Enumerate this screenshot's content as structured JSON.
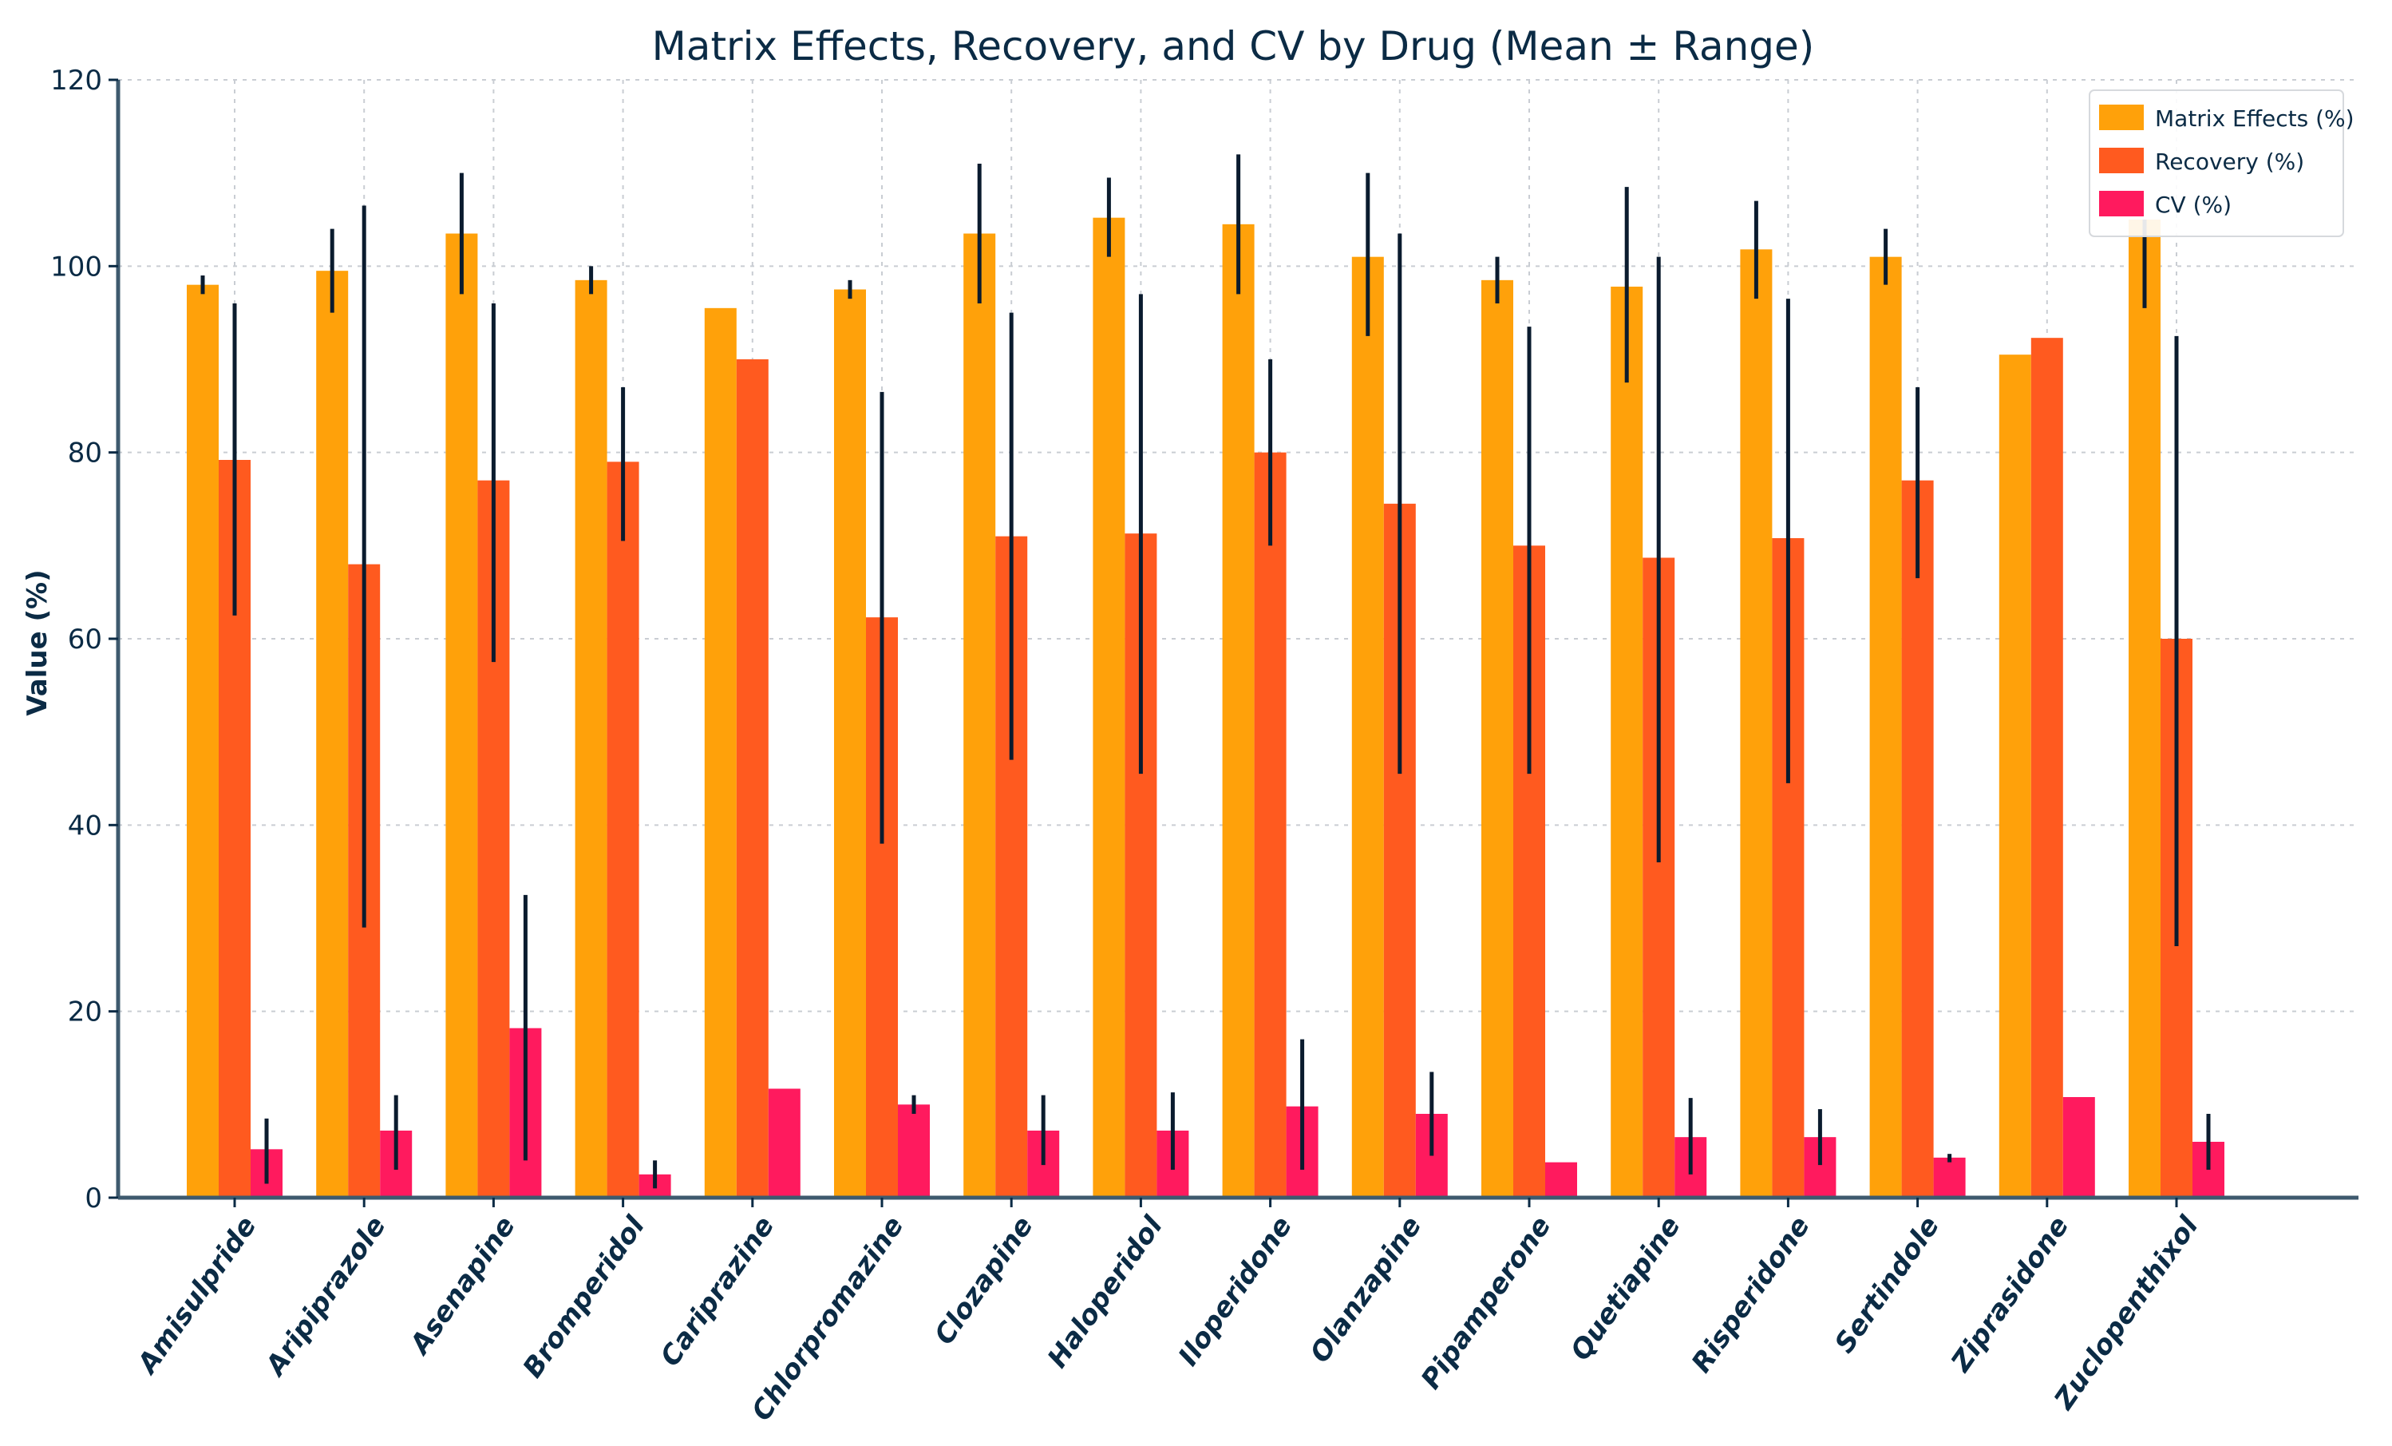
{
  "chart_data": {
    "type": "bar",
    "title": "Matrix Effects, Recovery, and CV by Drug (Mean ± Range)",
    "xlabel": "",
    "ylabel": "Value (%)",
    "ylim": [
      0,
      120
    ],
    "yticks": [
      0,
      20,
      40,
      60,
      80,
      100,
      120
    ],
    "grid": true,
    "legend_position": "top-right",
    "categories": [
      "Amisulpride",
      "Aripiprazole",
      "Asenapine",
      "Bromperidol",
      "Cariprazine",
      "Chlorpromazine",
      "Clozapine",
      "Haloperidol",
      "Iloperidone",
      "Olanzapine",
      "Pipamperone",
      "Quetiapine",
      "Risperidone",
      "Sertindole",
      "Ziprasidone",
      "Zuclopenthixol"
    ],
    "series": [
      {
        "name": "Matrix Effects (%)",
        "color": "#ffa10a",
        "values": [
          98,
          99.5,
          103.5,
          98.5,
          95.5,
          97.5,
          103.5,
          105.2,
          104.5,
          101,
          98.5,
          97.8,
          101.8,
          101,
          90.5,
          105
        ],
        "err_low": [
          97,
          95,
          97,
          97,
          95.5,
          96.5,
          96,
          101,
          97,
          92.5,
          96,
          87.5,
          96.5,
          98,
          90.5,
          95.5
        ],
        "err_high": [
          99,
          104,
          110,
          100,
          95.5,
          98.5,
          111,
          109.5,
          112,
          110,
          101,
          108.5,
          107,
          104,
          90.5,
          105
        ]
      },
      {
        "name": "Recovery (%)",
        "color": "#ff5a1f",
        "values": [
          79.2,
          68,
          77,
          79,
          90,
          62.3,
          71,
          71.3,
          80,
          74.5,
          70,
          68.7,
          70.8,
          77,
          92.3,
          60
        ],
        "err_low": [
          62.5,
          29,
          57.5,
          70.5,
          90,
          38,
          47,
          45.5,
          70,
          45.5,
          45.5,
          36,
          44.5,
          66.5,
          92.3,
          27
        ],
        "err_high": [
          96,
          106.5,
          96,
          87,
          90,
          86.5,
          95,
          97,
          90,
          103.5,
          93.5,
          101,
          96.5,
          87,
          92.3,
          92.5
        ]
      },
      {
        "name": "CV (%)",
        "color": "#ff1a5e",
        "values": [
          5.2,
          7.2,
          18.2,
          2.5,
          11.7,
          10,
          7.2,
          7.2,
          9.8,
          9,
          3.8,
          6.5,
          6.5,
          4.3,
          10.8,
          6
        ],
        "err_low": [
          1.5,
          3,
          4,
          1,
          11.7,
          9,
          3.5,
          3,
          3,
          4.5,
          3.8,
          2.5,
          3.5,
          3.8,
          10.8,
          3
        ],
        "err_high": [
          8.5,
          11,
          32.5,
          4,
          11.7,
          11,
          11,
          11.3,
          17,
          13.5,
          3.8,
          10.7,
          9.5,
          4.7,
          10.8,
          9
        ]
      }
    ]
  }
}
